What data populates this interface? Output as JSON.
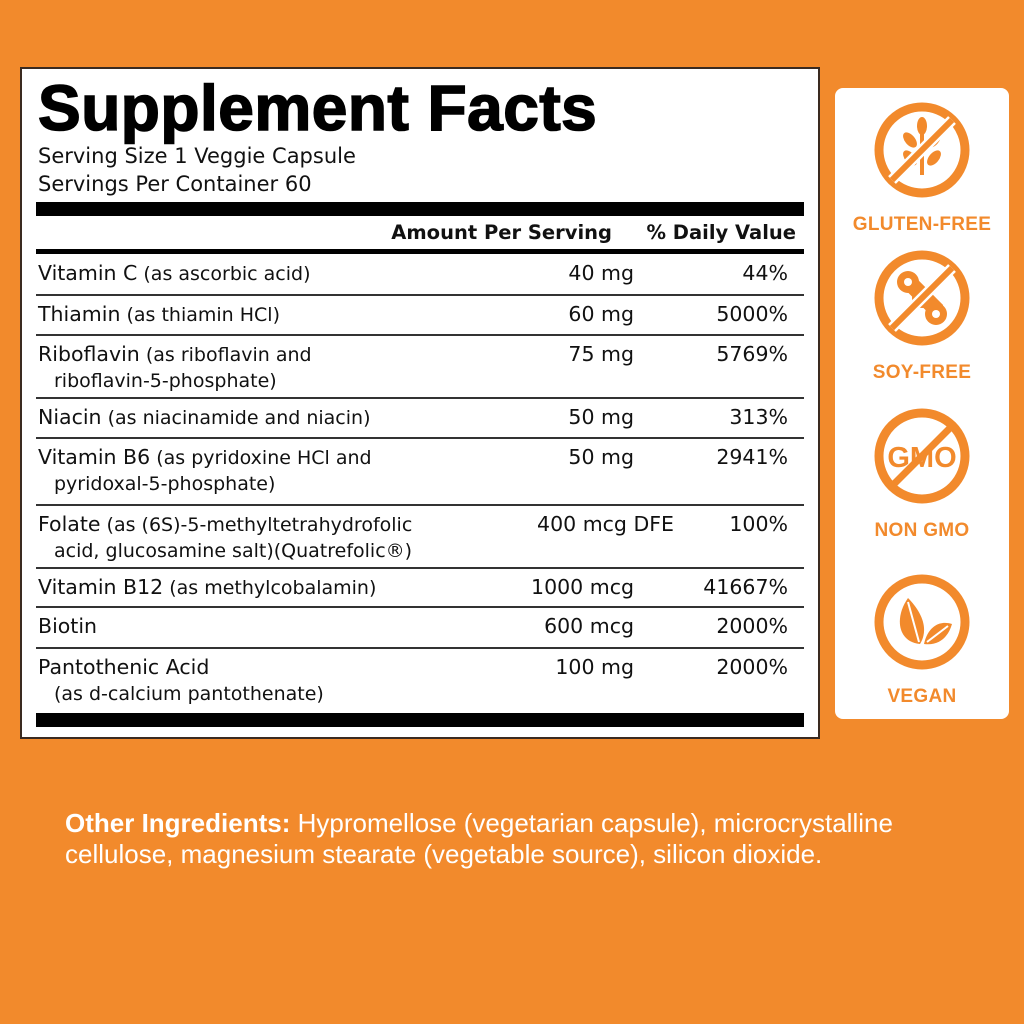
{
  "label": {
    "title": "Supplement Facts",
    "serving_size": "Serving Size 1 Veggie Capsule",
    "servings_per_container": "Servings Per Container  60",
    "header_amount": "Amount Per Serving",
    "header_dv": "% Daily Value",
    "rows": [
      {
        "name": "Vitamin C",
        "sub": " (as ascorbic acid)",
        "line2": "",
        "amount": "40 mg",
        "dv": "44%"
      },
      {
        "name": "Thiamin",
        "sub": " (as thiamin HCl)",
        "line2": "",
        "amount": "60 mg",
        "dv": "5000%"
      },
      {
        "name": "Riboflavin",
        "sub": " (as riboflavin and",
        "line2": "riboflavin-5-phosphate)",
        "amount": "75 mg",
        "dv": "5769%"
      },
      {
        "name": "Niacin",
        "sub": " (as niacinamide and niacin)",
        "line2": "",
        "amount": "50 mg",
        "dv": "313%"
      },
      {
        "name": "Vitamin B6",
        "sub": " (as pyridoxine HCl and",
        "line2": "pyridoxal-5-phosphate)",
        "amount": "50 mg",
        "dv": "2941%"
      },
      {
        "name": "Folate",
        "sub": " (as (6S)-5-methyltetrahydrofolic",
        "line2": "acid, glucosamine salt)(Quatrefolic®)",
        "amount": "400 mcg DFE",
        "dv": "100%"
      },
      {
        "name": "Vitamin B12",
        "sub": " (as methylcobalamin)",
        "line2": "",
        "amount": "1000 mcg",
        "dv": "41667%"
      },
      {
        "name": "Biotin",
        "sub": "",
        "line2": "",
        "amount": "600 mcg",
        "dv": "2000%"
      },
      {
        "name": "Pantothenic Acid",
        "sub": "",
        "line2": "(as d-calcium pantothenate)",
        "amount": "100 mg",
        "dv": "2000%"
      }
    ]
  },
  "badges": [
    {
      "icon": "gluten-free-icon",
      "label": "GLUTEN-FREE"
    },
    {
      "icon": "soy-free-icon",
      "label": "SOY-FREE"
    },
    {
      "icon": "non-gmo-icon",
      "label": "NON GMO",
      "icon_text": "GMO"
    },
    {
      "icon": "vegan-leaf-icon",
      "label": "VEGAN"
    }
  ],
  "other_ingredients": {
    "label": "Other Ingredients:",
    "text": " Hypromellose (vegetarian capsule), microcrystalline cellulose, magnesium stearate (vegetable source), silicon dioxide."
  },
  "colors": {
    "background": "#F28A2C",
    "accent": "#F28A2C",
    "panel": "#FFFFFF"
  }
}
